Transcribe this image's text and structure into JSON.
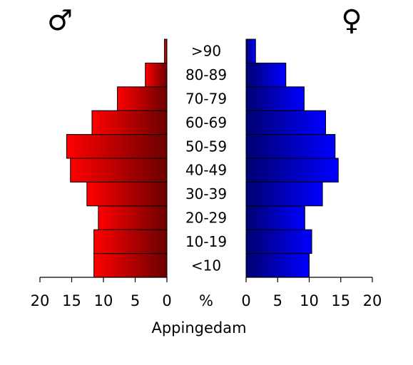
{
  "chart_data": {
    "type": "bar",
    "title": "Appingedam",
    "categories": [
      "<10",
      "10-19",
      "20-29",
      "30-39",
      "40-49",
      "50-59",
      "60-69",
      "70-79",
      "80-89",
      ">90"
    ],
    "series": [
      {
        "name": "♂",
        "side": "left",
        "values": [
          11.5,
          11.5,
          10.8,
          12.6,
          15.2,
          15.8,
          11.8,
          7.8,
          3.4,
          0.4
        ],
        "colors": {
          "outer": "#ff0000",
          "inner": "#6b0000"
        }
      },
      {
        "name": "♀",
        "side": "right",
        "values": [
          10.0,
          10.4,
          9.3,
          12.1,
          14.6,
          14.1,
          12.6,
          9.2,
          6.3,
          1.5
        ],
        "colors": {
          "outer": "#0000ff",
          "inner": "#000070"
        }
      }
    ],
    "xlim": [
      0,
      20
    ],
    "x_ticks": [
      20,
      15,
      10,
      5,
      0
    ],
    "x_ticks_right": [
      0,
      5,
      10,
      15,
      20
    ],
    "xlabel": "%",
    "grid": false,
    "legend": "none"
  }
}
